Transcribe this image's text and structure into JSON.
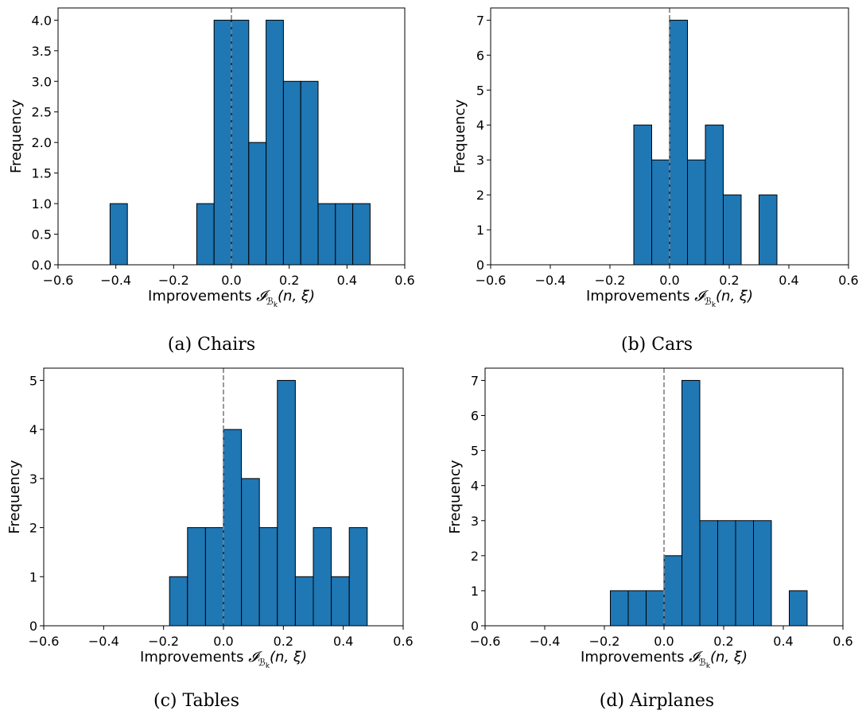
{
  "chart_data": [
    {
      "type": "bar",
      "caption": "(a) Chairs",
      "xlabel_text": "Improvements",
      "xlabel_math": "𝓘",
      "xlabel_sub": "ℬ",
      "xlabel_subsub": "k",
      "xlabel_args": "(n, ξ)",
      "ylabel": "Frequency",
      "xlim": [
        -0.6,
        0.6
      ],
      "ylim": [
        0,
        4.2
      ],
      "xticks": [
        -0.6,
        -0.4,
        -0.2,
        0.0,
        0.2,
        0.4,
        0.6
      ],
      "xtick_labels": [
        "−0.6",
        "−0.4",
        "−0.2",
        "0.0",
        "0.2",
        "0.4",
        "0.6"
      ],
      "yticks": [
        0,
        0.5,
        1.0,
        1.5,
        2.0,
        2.5,
        3.0,
        3.5,
        4.0
      ],
      "ytick_labels": [
        "0.0",
        "0.5",
        "1.0",
        "1.5",
        "2.0",
        "2.5",
        "3.0",
        "3.5",
        "4.0"
      ],
      "bin_width": 0.06,
      "bins": [
        {
          "x0": -0.42,
          "value": 1
        },
        {
          "x0": -0.12,
          "value": 1
        },
        {
          "x0": -0.06,
          "value": 4
        },
        {
          "x0": 0.0,
          "value": 4
        },
        {
          "x0": 0.06,
          "value": 2
        },
        {
          "x0": 0.12,
          "value": 4
        },
        {
          "x0": 0.18,
          "value": 3
        },
        {
          "x0": 0.24,
          "value": 3
        },
        {
          "x0": 0.3,
          "value": 1
        },
        {
          "x0": 0.36,
          "value": 1
        },
        {
          "x0": 0.42,
          "value": 1
        }
      ],
      "vline_x": 0.0,
      "bar_color": "#1f77b4",
      "vline_color": "#808080"
    },
    {
      "type": "bar",
      "caption": "(b) Cars",
      "xlabel_text": "Improvements",
      "xlabel_math": "𝓘",
      "xlabel_sub": "ℬ",
      "xlabel_subsub": "k",
      "xlabel_args": "(n, ξ)",
      "ylabel": "Frequency",
      "xlim": [
        -0.6,
        0.6
      ],
      "ylim": [
        0,
        7.35
      ],
      "xticks": [
        -0.6,
        -0.4,
        -0.2,
        0.0,
        0.2,
        0.4,
        0.6
      ],
      "xtick_labels": [
        "−0.6",
        "−0.4",
        "−0.2",
        "0.0",
        "0.2",
        "0.4",
        "0.6"
      ],
      "yticks": [
        0,
        1,
        2,
        3,
        4,
        5,
        6,
        7
      ],
      "ytick_labels": [
        "0",
        "1",
        "2",
        "3",
        "4",
        "5",
        "6",
        "7"
      ],
      "bin_width": 0.06,
      "bins": [
        {
          "x0": -0.12,
          "value": 4
        },
        {
          "x0": -0.06,
          "value": 3
        },
        {
          "x0": 0.0,
          "value": 7
        },
        {
          "x0": 0.06,
          "value": 3
        },
        {
          "x0": 0.12,
          "value": 4
        },
        {
          "x0": 0.18,
          "value": 2
        },
        {
          "x0": 0.3,
          "value": 2
        }
      ],
      "vline_x": 0.0,
      "bar_color": "#1f77b4",
      "vline_color": "#808080"
    },
    {
      "type": "bar",
      "caption": "(c) Tables",
      "xlabel_text": "Improvements",
      "xlabel_math": "𝓘",
      "xlabel_sub": "ℬ",
      "xlabel_subsub": "k",
      "xlabel_args": "(n, ξ)",
      "ylabel": "Frequency",
      "xlim": [
        -0.6,
        0.6
      ],
      "ylim": [
        0,
        5.25
      ],
      "xticks": [
        -0.6,
        -0.4,
        -0.2,
        0.0,
        0.2,
        0.4,
        0.6
      ],
      "xtick_labels": [
        "−0.6",
        "−0.4",
        "−0.2",
        "0.0",
        "0.2",
        "0.4",
        "0.6"
      ],
      "yticks": [
        0,
        1,
        2,
        3,
        4,
        5
      ],
      "ytick_labels": [
        "0",
        "1",
        "2",
        "3",
        "4",
        "5"
      ],
      "bin_width": 0.06,
      "bins": [
        {
          "x0": -0.18,
          "value": 1
        },
        {
          "x0": -0.12,
          "value": 2
        },
        {
          "x0": -0.06,
          "value": 2
        },
        {
          "x0": 0.0,
          "value": 4
        },
        {
          "x0": 0.06,
          "value": 3
        },
        {
          "x0": 0.12,
          "value": 2
        },
        {
          "x0": 0.18,
          "value": 5
        },
        {
          "x0": 0.24,
          "value": 1
        },
        {
          "x0": 0.3,
          "value": 2
        },
        {
          "x0": 0.36,
          "value": 1
        },
        {
          "x0": 0.42,
          "value": 2
        }
      ],
      "vline_x": 0.0,
      "bar_color": "#1f77b4",
      "vline_color": "#808080"
    },
    {
      "type": "bar",
      "caption": "(d) Airplanes",
      "xlabel_text": "Improvements",
      "xlabel_math": "𝓘",
      "xlabel_sub": "ℬ",
      "xlabel_subsub": "k",
      "xlabel_args": "(n, ξ)",
      "ylabel": "Frequency",
      "xlim": [
        -0.6,
        0.6
      ],
      "ylim": [
        0,
        7.35
      ],
      "xticks": [
        -0.6,
        -0.4,
        -0.2,
        0.0,
        0.2,
        0.4,
        0.6
      ],
      "xtick_labels": [
        "−0.6",
        "−0.4",
        "−0.2",
        "0.0",
        "0.2",
        "0.4",
        "0.6"
      ],
      "yticks": [
        0,
        1,
        2,
        3,
        4,
        5,
        6,
        7
      ],
      "ytick_labels": [
        "0",
        "1",
        "2",
        "3",
        "4",
        "5",
        "6",
        "7"
      ],
      "bin_width": 0.06,
      "bins": [
        {
          "x0": -0.18,
          "value": 1
        },
        {
          "x0": -0.12,
          "value": 1
        },
        {
          "x0": -0.06,
          "value": 1
        },
        {
          "x0": 0.0,
          "value": 2
        },
        {
          "x0": 0.06,
          "value": 7
        },
        {
          "x0": 0.12,
          "value": 3
        },
        {
          "x0": 0.18,
          "value": 3
        },
        {
          "x0": 0.24,
          "value": 3
        },
        {
          "x0": 0.3,
          "value": 3
        },
        {
          "x0": 0.42,
          "value": 1
        }
      ],
      "vline_x": 0.0,
      "bar_color": "#1f77b4",
      "vline_color": "#808080"
    }
  ]
}
